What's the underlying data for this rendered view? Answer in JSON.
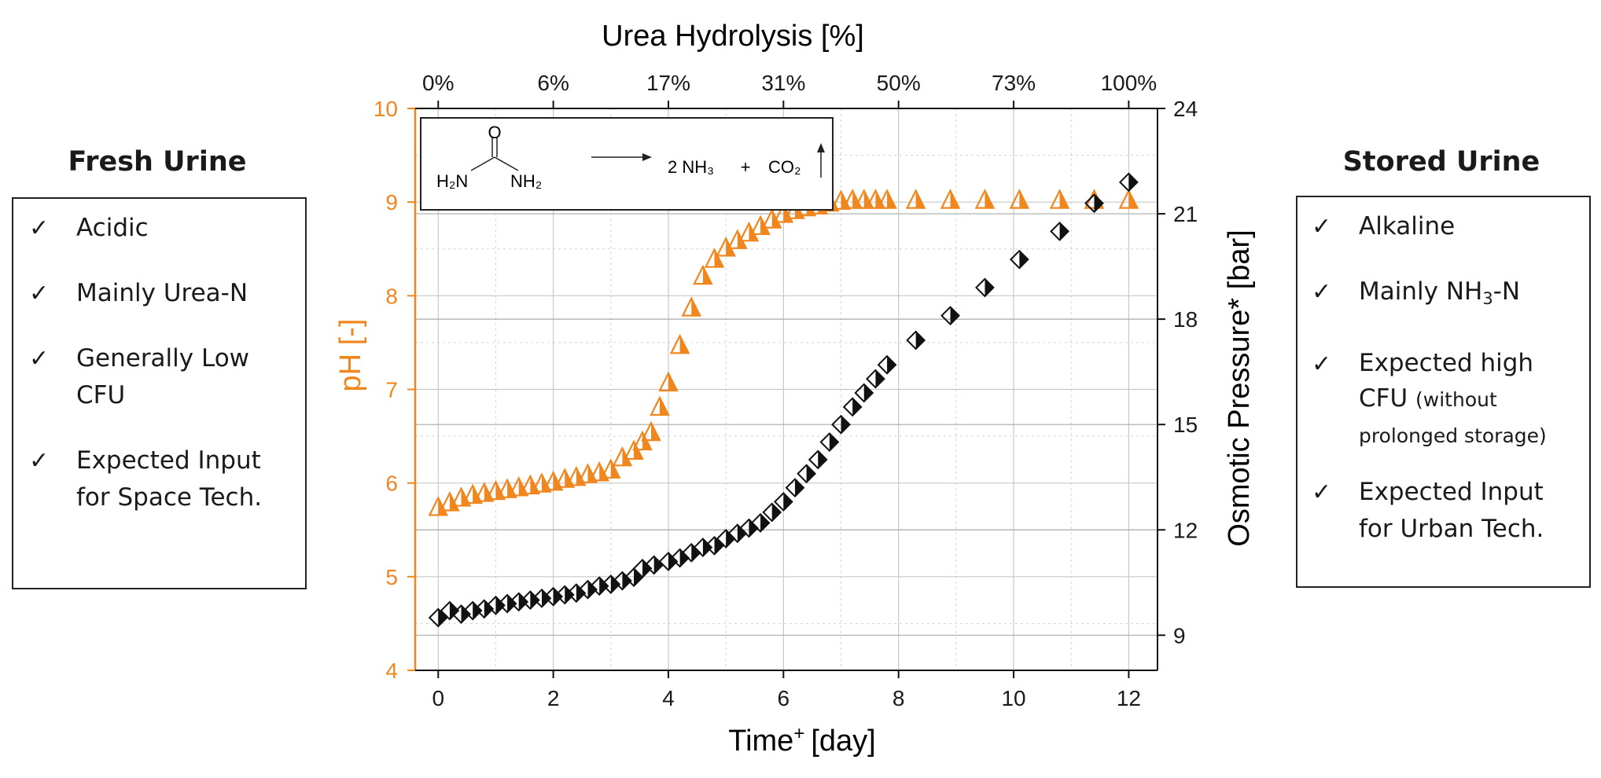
{
  "left_panel": {
    "title": "Fresh Urine",
    "items": [
      {
        "text": "Acidic"
      },
      {
        "text": "Mainly Urea-N"
      },
      {
        "line1": "Generally Low",
        "line2": "CFU"
      },
      {
        "line1": "Expected Input",
        "line2": "for Space Tech."
      }
    ]
  },
  "right_panel": {
    "title": "Stored Urine",
    "items": [
      {
        "text": "Alkaline"
      },
      {
        "pre": "Mainly NH",
        "sub": "3",
        "post": "-N"
      },
      {
        "line1": "Expected high",
        "line2": "CFU",
        "note1": "(without",
        "note2": "prolonged storage)"
      },
      {
        "line1": "Expected Input",
        "line2": "for Urban Tech."
      }
    ]
  },
  "reaction": {
    "o": "O",
    "h2n": "H₂N",
    "nh2": "NH₂",
    "products_a": "2 NH₃",
    "plus": "+",
    "products_b": "CO₂"
  },
  "colors": {
    "ph": "#f0861e",
    "osmotic": "#111111",
    "axis_text": "#1a1a1a"
  },
  "chart_data": {
    "type": "scatter",
    "title": "",
    "xlabel": "Time",
    "xlabel_sup": "+",
    "xlabel_unit": "[day]",
    "ylabel_left": "pH [-]",
    "ylabel_right": "Osmotic Pressure* [bar]",
    "xlabel_top": "Urea Hydrolysis [%]",
    "xlim": [
      -0.4,
      12.5
    ],
    "ylim_left": [
      4,
      10
    ],
    "ylim_right": [
      8,
      24
    ],
    "x_ticks": [
      "0",
      "2",
      "4",
      "6",
      "8",
      "10",
      "12"
    ],
    "y_left_ticks": [
      "4",
      "5",
      "6",
      "7",
      "8",
      "9",
      "10"
    ],
    "y_right_ticks": [
      "9",
      "12",
      "15",
      "18",
      "21",
      "24"
    ],
    "top_ticks": [
      {
        "x": 0,
        "label": "0%"
      },
      {
        "x": 2,
        "label": "6%"
      },
      {
        "x": 4,
        "label": "17%"
      },
      {
        "x": 6,
        "label": "31%"
      },
      {
        "x": 8,
        "label": "50%"
      },
      {
        "x": 10,
        "label": "73%"
      },
      {
        "x": 12,
        "label": "100%"
      }
    ],
    "series": [
      {
        "name": "pH",
        "axis": "left",
        "marker": "half-filled triangle",
        "x": [
          0.0,
          0.2,
          0.4,
          0.6,
          0.8,
          1.0,
          1.2,
          1.4,
          1.6,
          1.8,
          2.0,
          2.2,
          2.4,
          2.6,
          2.8,
          3.0,
          3.2,
          3.4,
          3.55,
          3.7,
          3.85,
          4.0,
          4.2,
          4.4,
          4.6,
          4.8,
          5.0,
          5.2,
          5.4,
          5.6,
          5.8,
          6.0,
          6.2,
          6.4,
          6.6,
          6.8,
          7.0,
          7.2,
          7.4,
          7.6,
          7.8,
          8.3,
          8.9,
          9.5,
          10.1,
          10.8,
          11.4,
          12.0
        ],
        "values": [
          5.75,
          5.8,
          5.85,
          5.88,
          5.9,
          5.92,
          5.94,
          5.96,
          5.98,
          6.0,
          6.02,
          6.05,
          6.07,
          6.1,
          6.12,
          6.15,
          6.28,
          6.35,
          6.45,
          6.55,
          6.82,
          7.08,
          7.48,
          7.88,
          8.22,
          8.4,
          8.52,
          8.6,
          8.68,
          8.75,
          8.82,
          8.88,
          8.92,
          8.95,
          8.97,
          9.0,
          9.02,
          9.03,
          9.03,
          9.03,
          9.03,
          9.03,
          9.03,
          9.03,
          9.03,
          9.03,
          9.03,
          9.03
        ]
      },
      {
        "name": "Osmotic Pressure",
        "axis": "right",
        "marker": "half-filled diamond",
        "x": [
          0.0,
          0.2,
          0.4,
          0.6,
          0.8,
          1.0,
          1.2,
          1.4,
          1.6,
          1.8,
          2.0,
          2.2,
          2.4,
          2.6,
          2.8,
          3.0,
          3.2,
          3.4,
          3.55,
          3.75,
          4.0,
          4.2,
          4.4,
          4.6,
          4.8,
          5.0,
          5.2,
          5.4,
          5.6,
          5.8,
          6.0,
          6.2,
          6.4,
          6.6,
          6.8,
          7.0,
          7.2,
          7.4,
          7.6,
          7.8,
          8.3,
          8.9,
          9.5,
          10.1,
          10.8,
          11.4,
          12.0
        ],
        "values": [
          9.5,
          9.7,
          9.6,
          9.7,
          9.75,
          9.85,
          9.9,
          9.95,
          10.0,
          10.05,
          10.1,
          10.15,
          10.2,
          10.3,
          10.4,
          10.45,
          10.55,
          10.65,
          10.9,
          11.0,
          11.1,
          11.2,
          11.35,
          11.5,
          11.55,
          11.75,
          11.9,
          12.05,
          12.2,
          12.5,
          12.8,
          13.2,
          13.6,
          14.0,
          14.5,
          15.0,
          15.5,
          15.9,
          16.3,
          16.7,
          17.4,
          18.1,
          18.9,
          19.7,
          20.5,
          21.3,
          21.9
        ]
      }
    ]
  }
}
